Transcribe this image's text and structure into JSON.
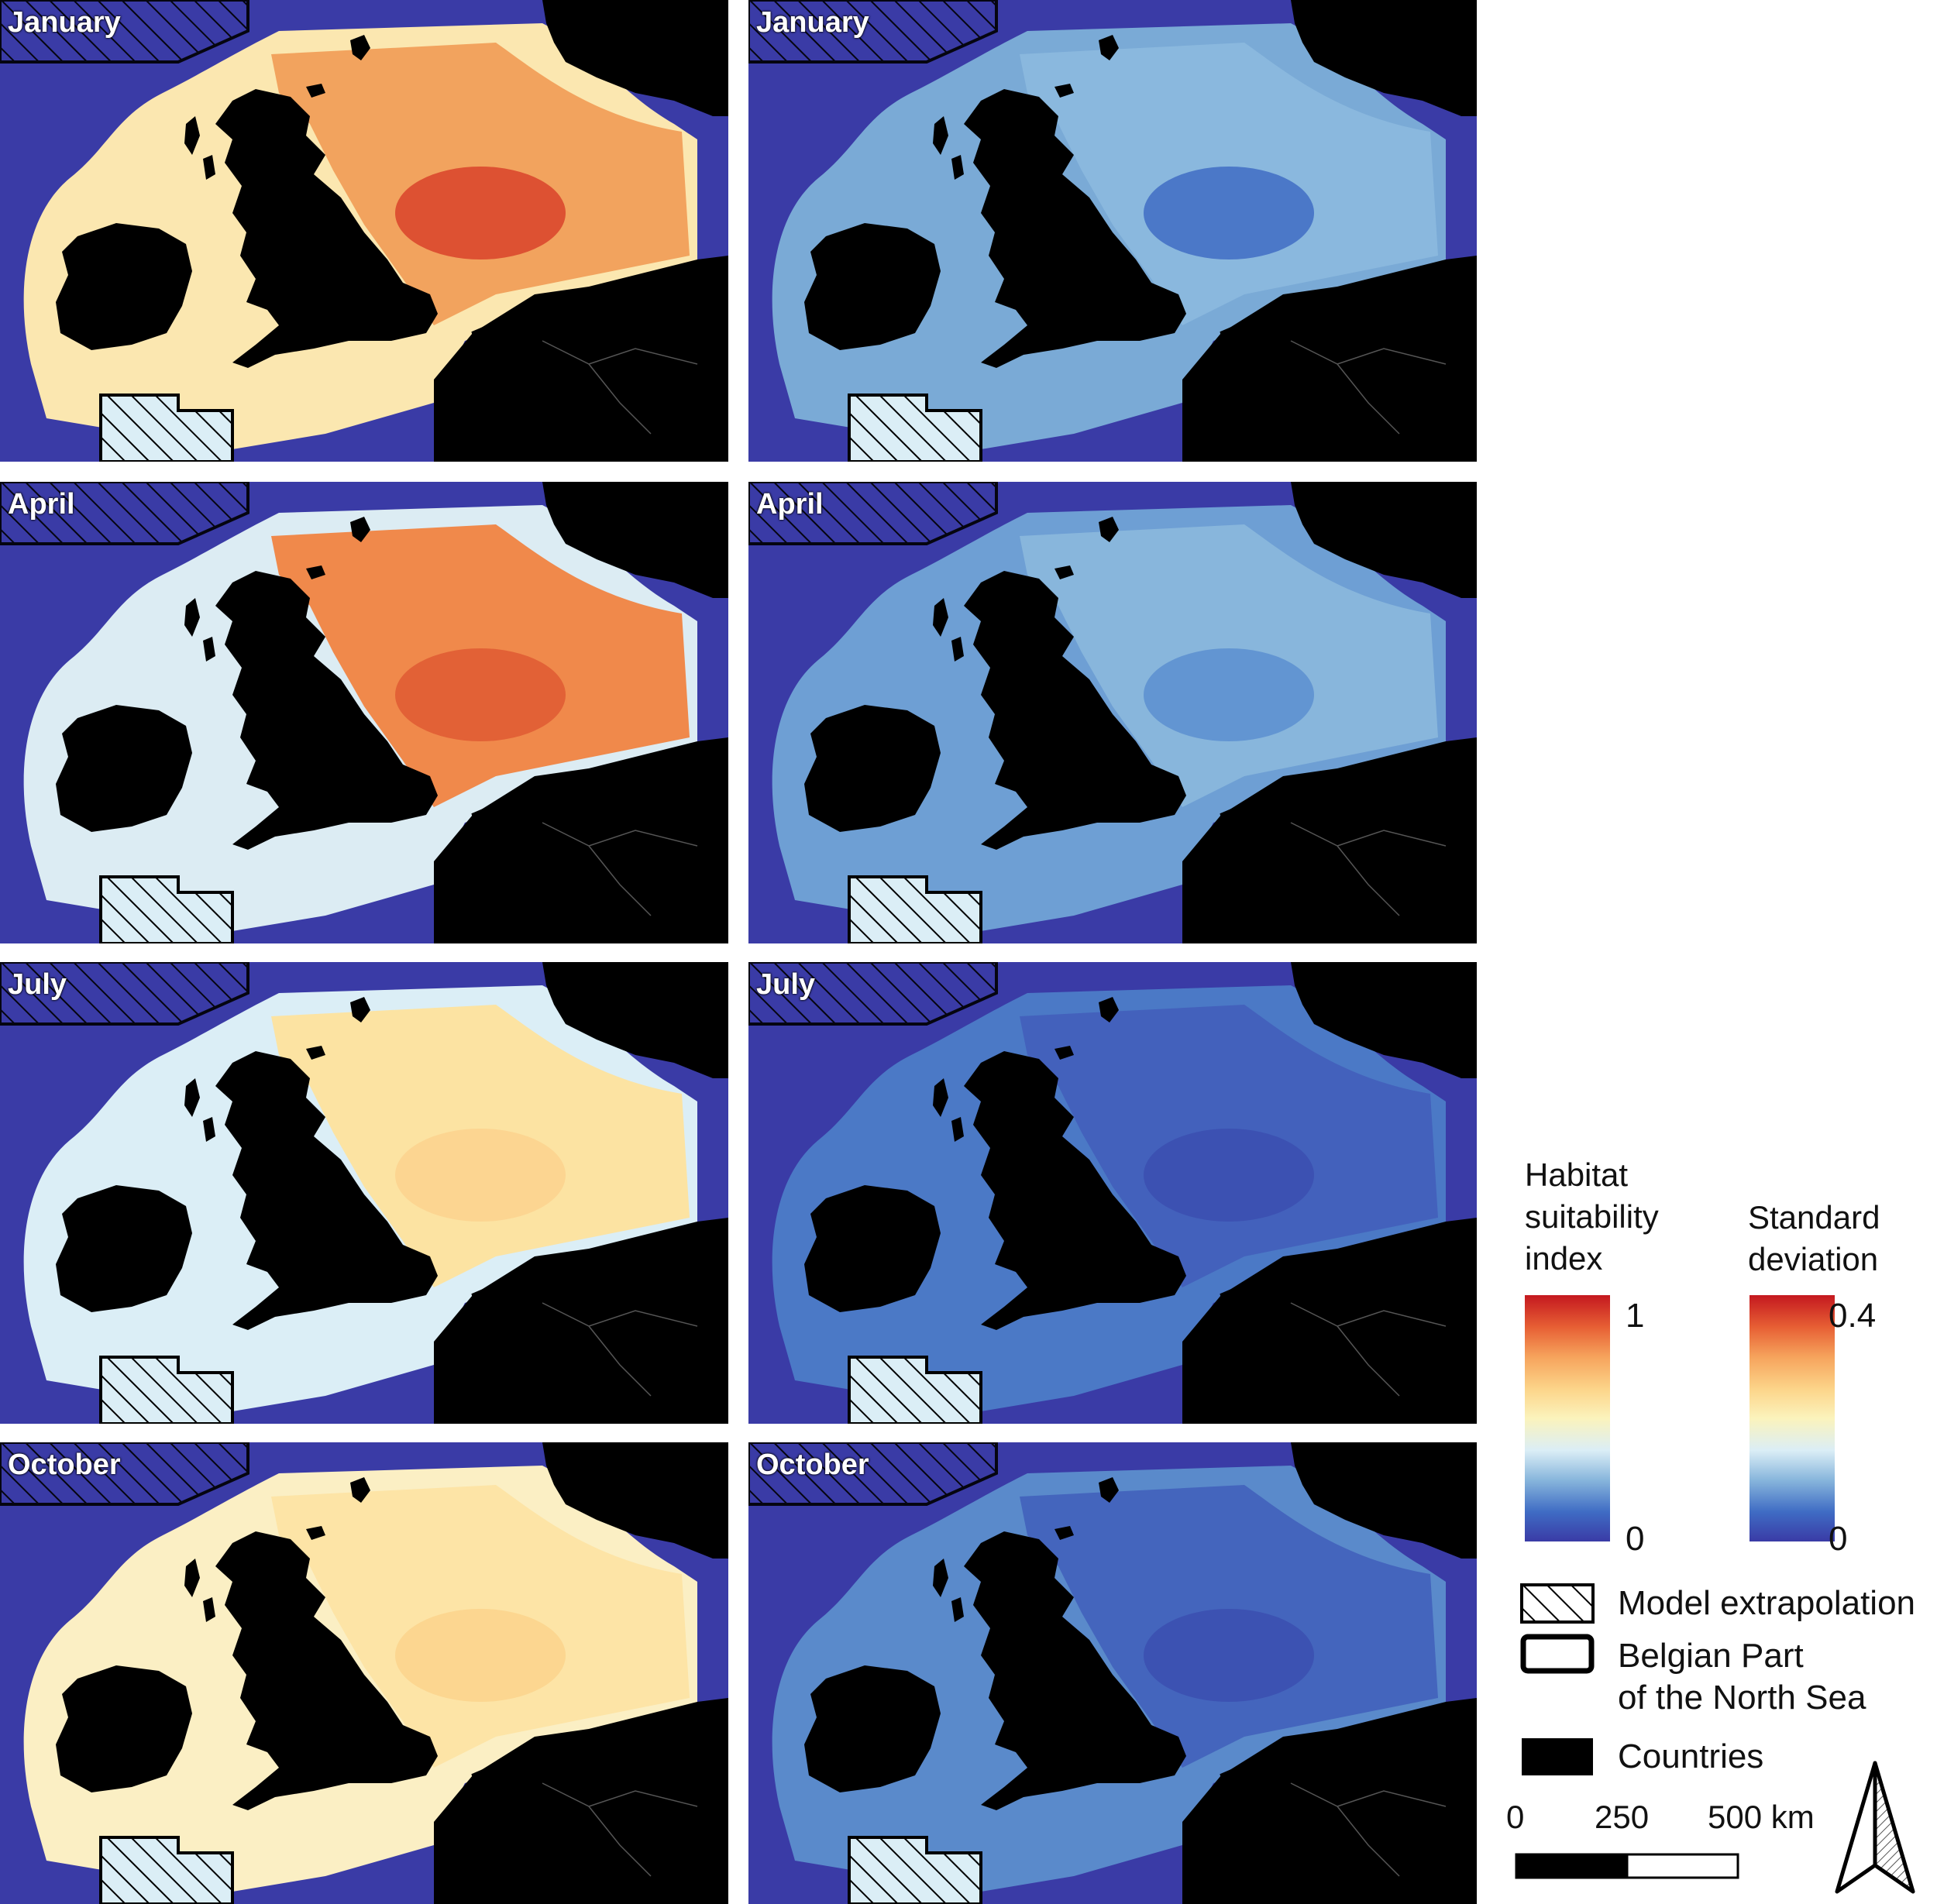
{
  "palette": {
    "land": "#000000",
    "hsi": [
      "#3a3ba6",
      "#3f6cc4",
      "#88b6dc",
      "#dbeef6",
      "#fbf3bc",
      "#fcd489",
      "#f6a35c",
      "#e75f34",
      "#c4181f"
    ],
    "sd": [
      "#3a3ba6",
      "#3f6cc4",
      "#88b6dc",
      "#dbeef6",
      "#fbf3bc",
      "#fcd489",
      "#f6a35c",
      "#e75f34",
      "#c4181f"
    ]
  },
  "panels": [
    {
      "id": "hsi-january",
      "month": "January",
      "variable": "Habitat suitability index",
      "sea": "#f2a35e",
      "hot": "#d9432a",
      "shelf": "#fbe7b0"
    },
    {
      "id": "sd-january",
      "month": "January",
      "variable": "Standard deviation",
      "sea": "#8ab8de",
      "hot": "#3f6cc4",
      "shelf": "#7aaad6"
    },
    {
      "id": "hsi-april",
      "month": "April",
      "variable": "Habitat suitability index",
      "sea": "#f0894b",
      "hot": "#df5a33",
      "shelf": "#dcecf3"
    },
    {
      "id": "sd-april",
      "month": "April",
      "variable": "Standard deviation",
      "sea": "#88b6dc",
      "hot": "#5c8fd0",
      "shelf": "#6e9fd4"
    },
    {
      "id": "hsi-july",
      "month": "July",
      "variable": "Habitat suitability index",
      "sea": "#fce3a2",
      "hot": "#fbd28e",
      "shelf": "#dbeef6"
    },
    {
      "id": "sd-july",
      "month": "July",
      "variable": "Standard deviation",
      "sea": "#4361bc",
      "hot": "#3b4fb0",
      "shelf": "#4b79c6"
    },
    {
      "id": "hsi-october",
      "month": "October",
      "variable": "Habitat suitability index",
      "sea": "#fde4a6",
      "hot": "#fcd48c",
      "shelf": "#fbefc4"
    },
    {
      "id": "sd-october",
      "month": "October",
      "variable": "Standard deviation",
      "sea": "#4465bd",
      "hot": "#3b4fb0",
      "shelf": "#5a8acb"
    }
  ],
  "legend": {
    "hsi_title": [
      "Habitat",
      "suitability",
      "index"
    ],
    "hsi_max": "1",
    "hsi_min": "0",
    "sd_title": [
      "Standard",
      "deviation"
    ],
    "sd_max": "0.4",
    "sd_min": "0",
    "model_extrapolation": "Model extrapolation",
    "bpns": [
      "Belgian Part",
      "of the North Sea"
    ],
    "countries": "Countries"
  },
  "scale_bar": {
    "ticks": [
      "0",
      "250",
      "500 km"
    ]
  },
  "north_arrow": {
    "icon": "north-arrow-icon"
  }
}
